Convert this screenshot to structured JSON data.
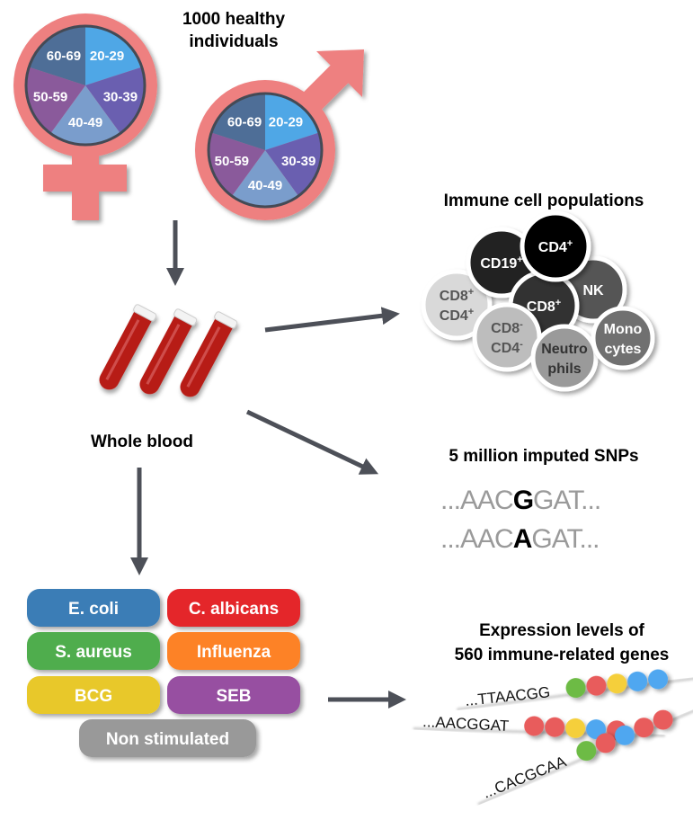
{
  "cohort": {
    "title_line1": "1000 healthy",
    "title_line2": "individuals",
    "age_groups": [
      "20-29",
      "30-39",
      "40-49",
      "50-59",
      "60-69"
    ],
    "age_colors": [
      "#4fa7e6",
      "#6a5fb0",
      "#7a9dcc",
      "#8a5a9b",
      "#4e6e97"
    ],
    "symbol_color": "#ee8080"
  },
  "blood": {
    "label": "Whole blood",
    "tube_color": "#b71c18"
  },
  "immune_cells": {
    "title": "Immune cell populations",
    "cells": [
      {
        "lines": [
          {
            "text": "CD8",
            "sup": "+"
          },
          {
            "text": "CD4",
            "sup": "+"
          }
        ],
        "fill": "#d9d9d9",
        "text_color": "#555555"
      },
      {
        "lines": [
          {
            "text": "CD19",
            "sup": "+"
          }
        ],
        "fill": "#222222",
        "text_color": "#ffffff"
      },
      {
        "lines": [
          {
            "text": "NK",
            "sup": ""
          }
        ],
        "fill": "#555555",
        "text_color": "#ffffff"
      },
      {
        "lines": [
          {
            "text": "CD8",
            "sup": "+"
          }
        ],
        "fill": "#333333",
        "text_color": "#ffffff"
      },
      {
        "lines": [
          {
            "text": "CD4",
            "sup": "+"
          }
        ],
        "fill": "#000000",
        "text_color": "#ffffff"
      },
      {
        "lines": [
          {
            "text": "CD8",
            "sup": "-"
          },
          {
            "text": "CD4",
            "sup": "-"
          }
        ],
        "fill": "#bdbdbd",
        "text_color": "#555555"
      },
      {
        "lines": [
          {
            "text": "Neutro",
            "sup": ""
          },
          {
            "text": "phils",
            "sup": ""
          }
        ],
        "fill": "#9a9a9a",
        "text_color": "#333333"
      },
      {
        "lines": [
          {
            "text": "Mono",
            "sup": ""
          },
          {
            "text": "cytes",
            "sup": ""
          }
        ],
        "fill": "#707070",
        "text_color": "#ffffff"
      }
    ]
  },
  "snps": {
    "title": "5 million imputed SNPs",
    "seq1": {
      "prefix": "...AAC",
      "variant": "G",
      "suffix": "GAT..."
    },
    "seq2": {
      "prefix": "...AAC",
      "variant": "A",
      "suffix": "GAT..."
    }
  },
  "stimuli": [
    {
      "label": "E. coli",
      "color": "#3a7db6"
    },
    {
      "label": "C. albicans",
      "color": "#e4252b"
    },
    {
      "label": "S. aureus",
      "color": "#4fad4e"
    },
    {
      "label": "Influenza",
      "color": "#fd8227"
    },
    {
      "label": "BCG",
      "color": "#e8c82a"
    },
    {
      "label": "SEB",
      "color": "#9750a1"
    },
    {
      "label": "Non stimulated",
      "color": "#999999"
    }
  ],
  "expression": {
    "title_line1": "Expression levels of",
    "title_line2": "560 immune-related genes",
    "sequences": [
      {
        "text": "...TTAACGG",
        "beads": [
          "#6dbb45",
          "#e85c5c",
          "#f5cf3a",
          "#4fa7f0",
          "#4fa7f0"
        ]
      },
      {
        "text": "...AACGGAT",
        "beads": [
          "#e85c5c",
          "#e85c5c",
          "#f5cf3a",
          "#4fa7f0",
          "#e85c5c"
        ]
      },
      {
        "text": "...CACGCAA",
        "beads": [
          "#6dbb45",
          "#e85c5c",
          "#4fa7f0",
          "#e85c5c",
          "#e85c5c"
        ]
      }
    ]
  },
  "arrow_color": "#4d5058"
}
